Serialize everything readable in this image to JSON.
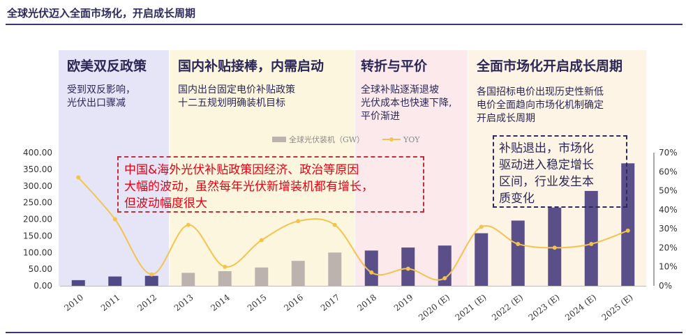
{
  "header": {
    "title": "全球光伏迈入全面市场化，开启成长周期"
  },
  "phases": [
    {
      "title": "欧美双反政策",
      "desc_lines": [
        "受到双反影响，",
        "光伏出口骤减"
      ],
      "color": "#e6e4f7"
    },
    {
      "title": "国内补贴接棒，内需启动",
      "desc_lines": [
        "国内出台固定电价补贴政策",
        "十二五规划明确装机目标"
      ],
      "color": "#fdf6df"
    },
    {
      "title": "转折与平价",
      "desc_lines": [
        "全球补贴逐渐退坡",
        "光伏成本也快速下降,",
        "平价渐进"
      ],
      "color": "#fbe9ec"
    },
    {
      "title": "全面市场化开启成长周期",
      "desc_lines": [
        "各国招标电价出现历史性新低",
        "电价全面趋向市场化机制确定",
        "开启成长周期"
      ],
      "color": "#fdf4e6"
    }
  ],
  "callouts": {
    "red_lines": [
      "中国&海外光伏补贴政策因经济、政治等原因",
      "大幅的波动，虽然每年光伏新增装机都有增长，",
      "但波动幅度很大"
    ],
    "navy_lines": [
      "补贴退出，市场化",
      "驱动进入稳定增长",
      "区间，行业发生本",
      "质变化"
    ]
  },
  "chart_data": {
    "type": "bar",
    "categories": [
      "2010",
      "2011",
      "2012",
      "2013",
      "2014",
      "2015",
      "2016",
      "2017",
      "2018",
      "2019",
      "2020 (E)",
      "2021 (E)",
      "2022 (E)",
      "2023 (E)",
      "2024 (E)",
      "2025 (E)"
    ],
    "series": [
      {
        "name": "全球光伏装机（GW）",
        "type": "bar",
        "values": [
          17,
          28,
          30,
          39,
          44,
          55,
          75,
          100,
          106,
          115,
          121,
          158,
          196,
          235,
          285,
          368
        ]
      },
      {
        "name": "YOY",
        "type": "line",
        "axis": "right",
        "values": [
          0.57,
          0.35,
          0.06,
          0.32,
          0.1,
          0.24,
          0.34,
          0.32,
          0.07,
          0.09,
          0.04,
          0.31,
          0.22,
          0.2,
          0.22,
          0.29
        ]
      }
    ],
    "left_ticks": [
      "0.00",
      "50.00",
      "100.00",
      "150.00",
      "200.00",
      "250.00",
      "300.00",
      "350.00",
      "400.00"
    ],
    "right_ticks": [
      "0%",
      "10%",
      "20%",
      "30%",
      "40%",
      "50%",
      "60%",
      "70%"
    ],
    "ylim": [
      0,
      400
    ],
    "y2lim": [
      0,
      0.7
    ],
    "colors": {
      "bar_historical": "#524a86",
      "bar_highlight": "#bdb3ae",
      "bar_forecast": "#5b4f8a",
      "line": "#f2c44f"
    },
    "highlight_indices": [
      3,
      4,
      5,
      6,
      7
    ],
    "legend_position": "top-center"
  }
}
